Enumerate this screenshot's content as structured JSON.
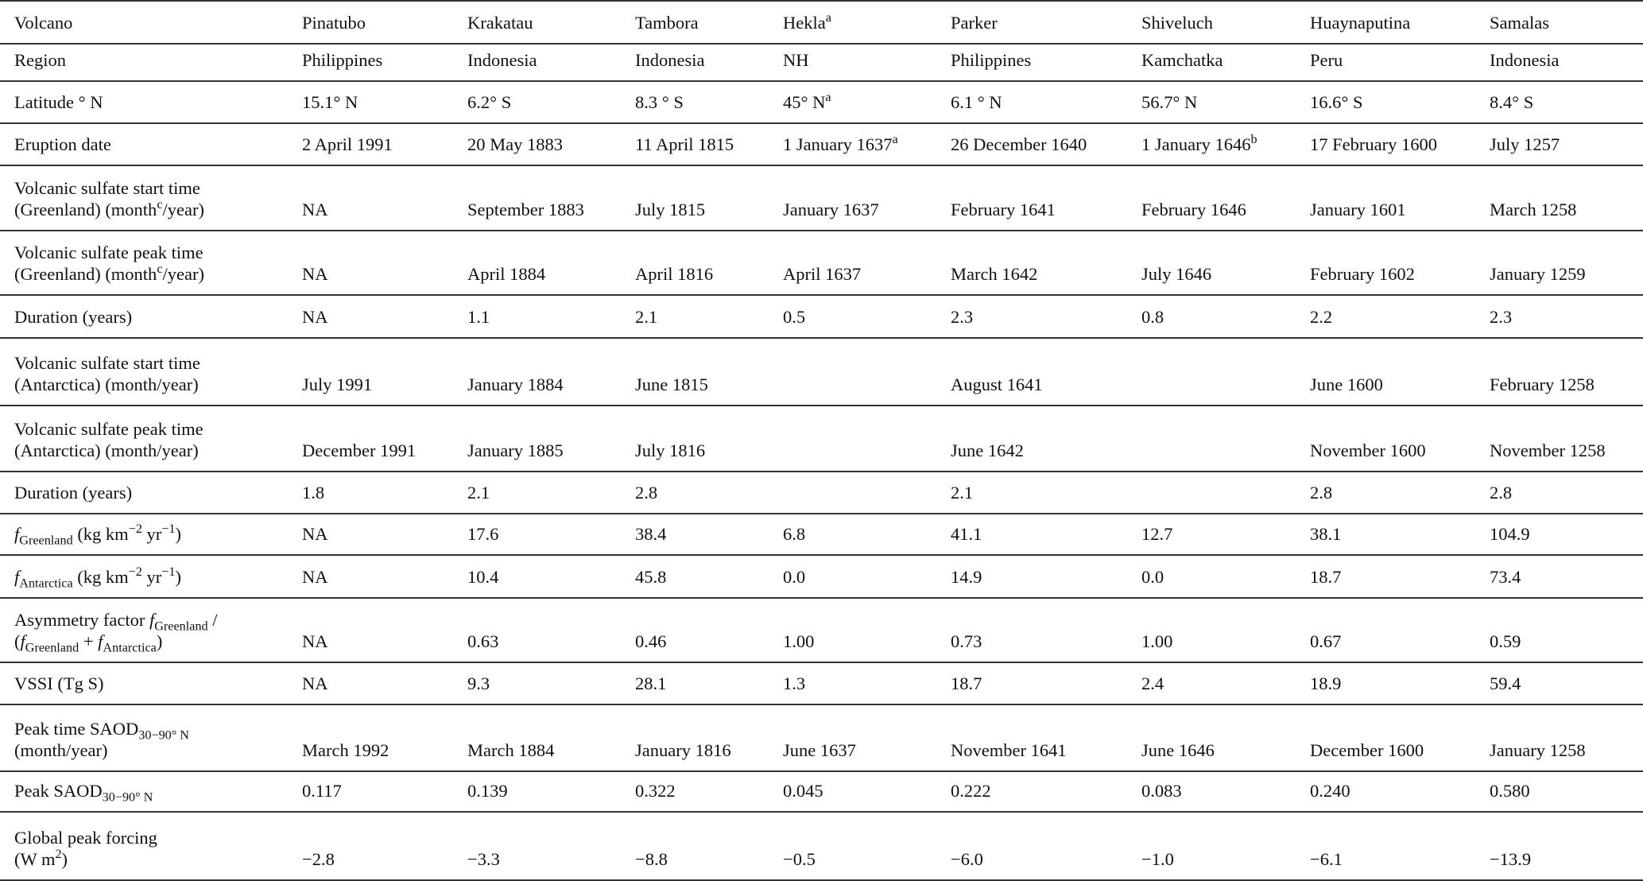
{
  "table": {
    "header": {
      "label": [
        {
          "t": "Volcano"
        }
      ],
      "values": [
        "Pinatubo",
        "Krakatau",
        "Tambora",
        [
          {
            "t": "Hekla"
          },
          {
            "t": "a",
            "s": "sup"
          }
        ],
        "Parker",
        "Shiveluch",
        "Huaynaputina",
        "Samalas"
      ]
    },
    "rows": [
      {
        "label": [
          {
            "t": "Region"
          }
        ],
        "values": [
          "Philippines",
          "Indonesia",
          "Indonesia",
          "NH",
          "Philippines",
          "Kamchatka",
          "Peru",
          "Indonesia"
        ]
      },
      {
        "label": [
          {
            "t": "Latitude ° N"
          }
        ],
        "values": [
          "15.1° N",
          "6.2° S",
          "8.3 ° S",
          [
            {
              "t": "45° N"
            },
            {
              "t": "a",
              "s": "sup"
            }
          ],
          "6.1 ° N",
          "56.7° N",
          "16.6° S",
          "8.4° S"
        ]
      },
      {
        "label": [
          {
            "t": "Eruption date"
          }
        ],
        "values": [
          "2 April 1991",
          "20 May 1883",
          "11 April 1815",
          [
            {
              "t": "1 January 1637"
            },
            {
              "t": "a",
              "s": "sup"
            }
          ],
          "26 December 1640",
          [
            {
              "t": "1 January 1646"
            },
            {
              "t": "b",
              "s": "sup"
            }
          ],
          "17 February 1600",
          "July 1257"
        ]
      },
      {
        "label": [
          {
            "t": "Volcanic sulfate start time"
          },
          {
            "s": "br"
          },
          {
            "t": "(Greenland) (month"
          },
          {
            "t": "c",
            "s": "sup"
          },
          {
            "t": "/year)"
          }
        ],
        "values": [
          "NA",
          "September 1883",
          "July 1815",
          "January 1637",
          "February 1641",
          "February 1646",
          "January 1601",
          "March 1258"
        ]
      },
      {
        "label": [
          {
            "t": "Volcanic sulfate peak time"
          },
          {
            "s": "br"
          },
          {
            "t": "(Greenland) (month"
          },
          {
            "t": "c",
            "s": "sup"
          },
          {
            "t": "/year)"
          }
        ],
        "values": [
          "NA",
          "April 1884",
          "April 1816",
          "April 1637",
          "March 1642",
          "July 1646",
          "February 1602",
          "January 1259"
        ]
      },
      {
        "label": [
          {
            "t": "Duration (years)"
          }
        ],
        "values": [
          "NA",
          "1.1",
          "2.1",
          "0.5",
          "2.3",
          "0.8",
          "2.2",
          "2.3"
        ]
      },
      {
        "label": [
          {
            "t": "Volcanic sulfate start time"
          },
          {
            "s": "br"
          },
          {
            "t": "(Antarctica) (month/year)"
          }
        ],
        "values": [
          "July 1991",
          "January 1884",
          "June 1815",
          "",
          "August 1641",
          "",
          "June 1600",
          "February 1258"
        ]
      },
      {
        "label": [
          {
            "t": "Volcanic sulfate peak time"
          },
          {
            "s": "br"
          },
          {
            "t": "(Antarctica) (month/year)"
          }
        ],
        "values": [
          "December 1991",
          "January 1885",
          "July 1816",
          "",
          "June 1642",
          "",
          "November 1600",
          "November 1258"
        ]
      },
      {
        "label": [
          {
            "t": "Duration (years)"
          }
        ],
        "values": [
          "1.8",
          "2.1",
          "2.8",
          "",
          "2.1",
          "",
          "2.8",
          "2.8"
        ]
      },
      {
        "label": [
          {
            "t": "f",
            "s": "i"
          },
          {
            "t": "Greenland",
            "s": "sub"
          },
          {
            "t": " (kg km"
          },
          {
            "t": "−2",
            "s": "sup"
          },
          {
            "t": " yr"
          },
          {
            "t": "−1",
            "s": "sup"
          },
          {
            "t": ")"
          }
        ],
        "values": [
          "NA",
          "17.6",
          "38.4",
          "6.8",
          "41.1",
          "12.7",
          "38.1",
          "104.9"
        ]
      },
      {
        "label": [
          {
            "t": "f",
            "s": "i"
          },
          {
            "t": "Antarctica",
            "s": "sub"
          },
          {
            "t": " (kg km"
          },
          {
            "t": "−2",
            "s": "sup"
          },
          {
            "t": " yr"
          },
          {
            "t": "−1",
            "s": "sup"
          },
          {
            "t": ")"
          }
        ],
        "values": [
          "NA",
          "10.4",
          "45.8",
          "0.0",
          "14.9",
          "0.0",
          "18.7",
          "73.4"
        ]
      },
      {
        "label": [
          {
            "t": "Asymmetry factor "
          },
          {
            "t": "f",
            "s": "i"
          },
          {
            "t": "Greenland",
            "s": "sub"
          },
          {
            "t": " /"
          },
          {
            "s": "br"
          },
          {
            "t": "("
          },
          {
            "t": "f",
            "s": "i"
          },
          {
            "t": "Greenland",
            "s": "sub"
          },
          {
            "t": " + "
          },
          {
            "t": "f",
            "s": "i"
          },
          {
            "t": "Antarctica",
            "s": "sub"
          },
          {
            "t": ")"
          }
        ],
        "values": [
          "NA",
          "0.63",
          "0.46",
          "1.00",
          "0.73",
          "1.00",
          "0.67",
          "0.59"
        ]
      },
      {
        "label": [
          {
            "t": "VSSI (Tg S)"
          }
        ],
        "values": [
          "NA",
          "9.3",
          "28.1",
          "1.3",
          "18.7",
          "2.4",
          "18.9",
          "59.4"
        ]
      },
      {
        "label": [
          {
            "t": "Peak time SAOD"
          },
          {
            "t": "30−90° N",
            "s": "sub"
          },
          {
            "s": "br"
          },
          {
            "t": "(month/year)"
          }
        ],
        "values": [
          "March 1992",
          "March 1884",
          "January 1816",
          "June 1637",
          "November 1641",
          "June 1646",
          "December 1600",
          "January 1258"
        ]
      },
      {
        "label": [
          {
            "t": "Peak SAOD"
          },
          {
            "t": "30−90° N",
            "s": "sub"
          }
        ],
        "values": [
          "0.117",
          "0.139",
          "0.322",
          "0.045",
          "0.222",
          "0.083",
          "0.240",
          "0.580"
        ]
      },
      {
        "label": [
          {
            "t": "Global peak forcing"
          },
          {
            "s": "br"
          },
          {
            "t": "(W m"
          },
          {
            "t": "2",
            "s": "sup"
          },
          {
            "t": ")"
          }
        ],
        "values": [
          "−2.8",
          "−3.3",
          "−8.8",
          "−0.5",
          "−6.0",
          "−1.0",
          "−6.1",
          "−13.9"
        ]
      }
    ]
  }
}
